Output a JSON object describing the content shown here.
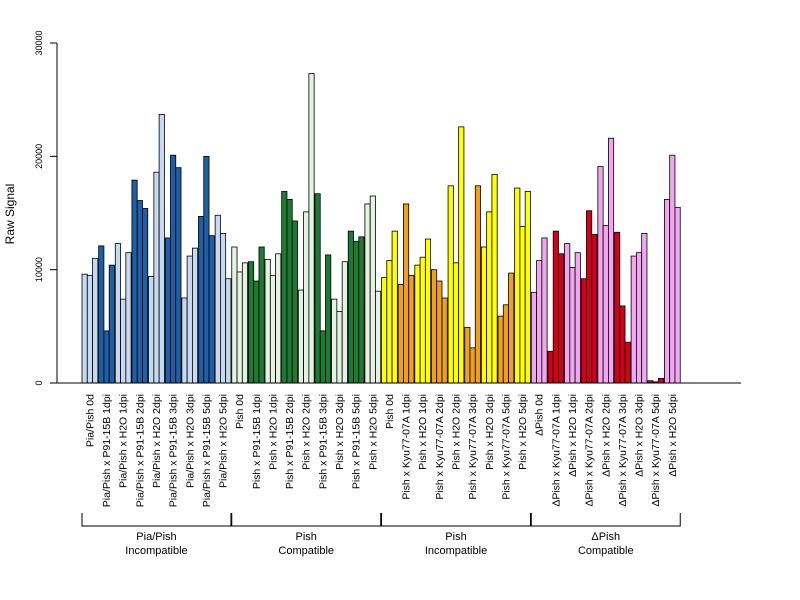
{
  "chart_data": {
    "type": "bar",
    "ylabel": "Raw Signal",
    "xlabel": "",
    "title": "",
    "ylim": [
      0,
      30000
    ],
    "yticks": [
      0,
      10000,
      20000,
      30000
    ],
    "grid": false,
    "legend": "none",
    "categories": [
      "Pia/Pish 0d",
      "Pia/Pish x P91-15B 1dpi",
      "Pia/Pish x H2O 1dpi",
      "Pia/Pish x P91-15B 2dpi",
      "Pia/Pish x H2O 2dpi",
      "Pia/Pish x P91-15B 3dpi",
      "Pia/Pish x H2O 3dpi",
      "Pia/Pish x P91-15B 5dpi",
      "Pia/Pish x H2O 5dpi",
      "Pish 0d",
      "Pish x P91-15B 1dpi",
      "Pish x H2O 1dpi",
      "Pish x P91-15B 2dpi",
      "Pish x H2O 2dpi",
      "Pish x P91-15B 3dpi",
      "Pish x H2O 3dpi",
      "Pish x P91-15B 5dpi",
      "Pish x H2O 5dpi",
      "Pish 0d",
      "Pish x Kyu77-07A 1dpi",
      "Pish x H2O 1dpi",
      "Pish x Kyu77-07A 2dpi",
      "Pish x H2O 2dpi",
      "Pish x Kyu77-07A 3dpi",
      "Pish x H2O 3dpi",
      "Pish x Kyu77-07A 5dpi",
      "Pish x H2O 5dpi",
      "ΔPish 0d",
      "ΔPish x Kyu77-07A 1dpi",
      "ΔPish x H2O 1dpi",
      "ΔPish x Kyu77-07A 2dpi",
      "ΔPish x H2O 2dpi",
      "ΔPish x Kyu77-07A 3dpi",
      "ΔPish x H2O 3dpi",
      "ΔPish x Kyu77-07A 5dpi",
      "ΔPish x H2O 5dpi"
    ],
    "replicates": [
      [
        9600,
        9500,
        11000
      ],
      [
        12100,
        4600,
        10400
      ],
      [
        12300,
        7400,
        11500
      ],
      [
        17900,
        16100,
        15400
      ],
      [
        9400,
        18600,
        23700
      ],
      [
        12800,
        20100,
        19000
      ],
      [
        7500,
        11200,
        11900
      ],
      [
        14700,
        20000,
        13000
      ],
      [
        14800,
        13200,
        9200
      ],
      [
        12000,
        9800,
        10600
      ],
      [
        10700,
        9000,
        12000
      ],
      [
        10900,
        9500,
        11400
      ],
      [
        16900,
        16200,
        14300
      ],
      [
        8200,
        15100,
        27300
      ],
      [
        16700,
        4600,
        11300
      ],
      [
        7400,
        6300,
        10700
      ],
      [
        13400,
        12500,
        12900
      ],
      [
        15800,
        16500,
        8100
      ],
      [
        9300,
        10800,
        13400
      ],
      [
        8700,
        15800,
        9500
      ],
      [
        10400,
        11100,
        12700
      ],
      [
        10000,
        9000,
        7500
      ],
      [
        17400,
        10600,
        22600
      ],
      [
        4900,
        3100,
        17400
      ],
      [
        12000,
        15100,
        18400
      ],
      [
        5900,
        6900,
        9700
      ],
      [
        17200,
        13800,
        16900
      ],
      [
        8000,
        10800,
        12800
      ],
      [
        2800,
        13400,
        11400
      ],
      [
        12300,
        10200,
        11500
      ],
      [
        9200,
        15200,
        13100
      ],
      [
        19100,
        13900,
        21600
      ],
      [
        13300,
        6800,
        3600
      ],
      [
        11200,
        11500,
        13200
      ],
      [
        200,
        100,
        400
      ],
      [
        16200,
        20100,
        15500
      ]
    ],
    "bar_colors": [
      "#c6d9f0",
      "#1f5fa8",
      "#c6d9f0",
      "#1f5fa8",
      "#c6d9f0",
      "#1f5fa8",
      "#c6d9f0",
      "#1f5fa8",
      "#c6d9f0",
      "#e4f2e1",
      "#1e7b34",
      "#e4f2e1",
      "#1e7b34",
      "#e4f2e1",
      "#1e7b34",
      "#e4f2e1",
      "#1e7b34",
      "#e4f2e1",
      "#ffff00",
      "#f0a020",
      "#ffff00",
      "#f0a020",
      "#ffff00",
      "#f0a020",
      "#ffff00",
      "#f0a020",
      "#ffff00",
      "#f2a6f2",
      "#d4001a",
      "#f2a6f2",
      "#d4001a",
      "#f2a6f2",
      "#d4001a",
      "#f2a6f2",
      "#d4001a",
      "#f2a6f2"
    ],
    "groups": [
      {
        "line1": "Pia/Pish",
        "line2": "Incompatible"
      },
      {
        "line1": "Pish",
        "line2": "Compatible"
      },
      {
        "line1": "Pish",
        "line2": "Incompatible"
      },
      {
        "line1": "ΔPish",
        "line2": "Compatible"
      }
    ]
  }
}
